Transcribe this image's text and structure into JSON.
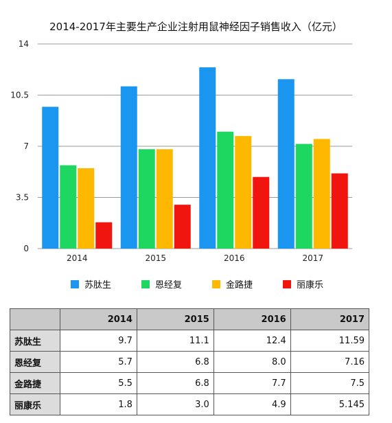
{
  "chart_data": {
    "type": "bar",
    "title": "2014-2017年主要生产企业注射用鼠神经因子销售收入（亿元）",
    "categories": [
      "2014",
      "2015",
      "2016",
      "2017"
    ],
    "series": [
      {
        "name": "苏肽生",
        "values": [
          9.7,
          11.1,
          12.4,
          11.59
        ],
        "color": "#1a96f0"
      },
      {
        "name": "恩经复",
        "values": [
          5.7,
          6.8,
          8.0,
          7.16
        ],
        "color": "#1ed760"
      },
      {
        "name": "金路捷",
        "values": [
          5.5,
          6.8,
          7.7,
          7.5
        ],
        "color": "#ffb800"
      },
      {
        "name": "丽康乐",
        "values": [
          1.8,
          3.0,
          4.9,
          5.145
        ],
        "color": "#f0160f"
      }
    ],
    "yticks": [
      "0",
      "3.5",
      "7",
      "10.5",
      "14"
    ],
    "ylim": [
      0,
      14
    ],
    "grid": true,
    "legend_position": "bottom"
  },
  "table": {
    "headers": [
      "",
      "2014",
      "2015",
      "2016",
      "2017"
    ],
    "rows": [
      {
        "label": "苏肽生",
        "cells": [
          "9.7",
          "11.1",
          "12.4",
          "11.59"
        ]
      },
      {
        "label": "恩经复",
        "cells": [
          "5.7",
          "6.8",
          "8.0",
          "7.16"
        ]
      },
      {
        "label": "金路捷",
        "cells": [
          "5.5",
          "6.8",
          "7.7",
          "7.5"
        ]
      },
      {
        "label": "丽康乐",
        "cells": [
          "1.8",
          "3.0",
          "4.9",
          "5.145"
        ]
      }
    ]
  }
}
